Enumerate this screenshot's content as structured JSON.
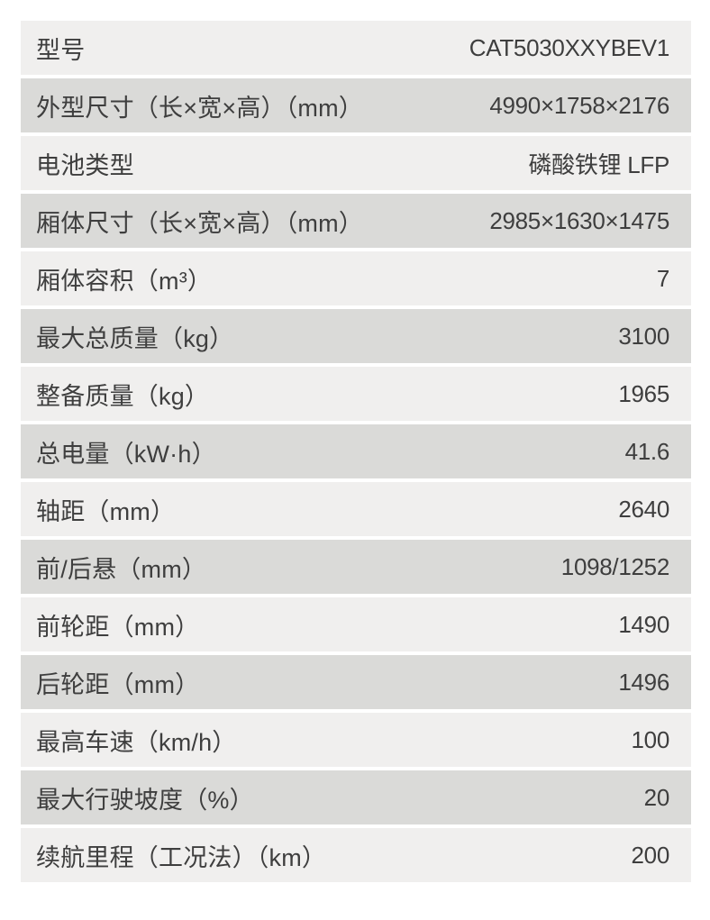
{
  "table": {
    "name": "vehicle-specifications",
    "rows": [
      {
        "label": "型号",
        "value": "CAT5030XXYBEV1"
      },
      {
        "label": "外型尺寸（长×宽×高）（mm）",
        "value": "4990×1758×2176"
      },
      {
        "label": "电池类型",
        "value": "磷酸铁锂 LFP"
      },
      {
        "label": "厢体尺寸（长×宽×高）（mm）",
        "value": "2985×1630×1475"
      },
      {
        "label": "厢体容积（m³）",
        "value": "7"
      },
      {
        "label": "最大总质量（kg）",
        "value": "3100"
      },
      {
        "label": "整备质量（kg）",
        "value": "1965"
      },
      {
        "label": "总电量（kW·h）",
        "value": "41.6"
      },
      {
        "label": "轴距（mm）",
        "value": "2640"
      },
      {
        "label": "前/后悬（mm）",
        "value": "1098/1252"
      },
      {
        "label": "前轮距（mm）",
        "value": "1490"
      },
      {
        "label": "后轮距（mm）",
        "value": "1496"
      },
      {
        "label": "最高车速（km/h）",
        "value": "100"
      },
      {
        "label": "最大行驶坡度（%）",
        "value": "20"
      },
      {
        "label": "续航里程（工况法）（km）",
        "value": "200"
      }
    ]
  },
  "colors": {
    "row_light": "#f0efee",
    "row_dark": "#dadad8",
    "text": "#3e3e3e",
    "background": "#ffffff"
  }
}
